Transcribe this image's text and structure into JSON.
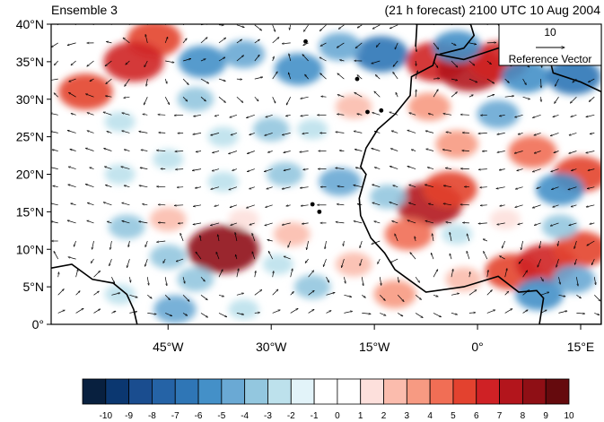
{
  "chart_data": {
    "type": "heatmap",
    "title_left": "Ensemble 3",
    "title_right": "(21 h forecast) 2100 UTC 10 Aug 2004",
    "map": {
      "lon_range": [
        -62,
        18
      ],
      "lat_range": [
        0,
        40
      ],
      "x_tick_labels": [
        {
          "lon": -45,
          "label": "45°W"
        },
        {
          "lon": -30,
          "label": "30°W"
        },
        {
          "lon": -15,
          "label": "15°W"
        },
        {
          "lon": 0,
          "label": "0°"
        },
        {
          "lon": 15,
          "label": "15°E"
        }
      ],
      "y_tick_labels": [
        {
          "lat": 0,
          "label": "0°"
        },
        {
          "lat": 5,
          "label": "5°N"
        },
        {
          "lat": 10,
          "label": "10°N"
        },
        {
          "lat": 15,
          "label": "15°N"
        },
        {
          "lat": 20,
          "label": "20°N"
        },
        {
          "lat": 25,
          "label": "25°N"
        },
        {
          "lat": 30,
          "label": "30°N"
        },
        {
          "lat": 35,
          "label": "35°N"
        },
        {
          "lat": 40,
          "label": "40°N"
        }
      ]
    },
    "reference_vector": {
      "magnitude": "10",
      "label": "Reference Vector"
    },
    "colorbar": {
      "labels": [
        "-10",
        "-9",
        "-8",
        "-7",
        "-6",
        "-5",
        "-4",
        "-3",
        "-2",
        "-1",
        "0",
        "1",
        "2",
        "3",
        "4",
        "5",
        "6",
        "7",
        "8",
        "9",
        "10"
      ],
      "colors": [
        "#08203f",
        "#0b3770",
        "#1a4d8f",
        "#2563a6",
        "#2f76b6",
        "#4490c8",
        "#6aa9d4",
        "#93c7df",
        "#bde1ec",
        "#e2f3f9",
        "#ffffff",
        "#ffffff",
        "#fde0dc",
        "#fbbcad",
        "#f79a82",
        "#f16e55",
        "#e3422f",
        "#cf2125",
        "#b3151c",
        "#8f0f15",
        "#650a0d"
      ]
    },
    "anomalies": [
      {
        "lon": -47,
        "lat": 38,
        "v": 6
      },
      {
        "lon": -50,
        "lat": 35,
        "v": 7
      },
      {
        "lon": -57,
        "lat": 31,
        "v": 6
      },
      {
        "lon": -40,
        "lat": 35,
        "v": -5
      },
      {
        "lon": -34,
        "lat": 36,
        "v": -4
      },
      {
        "lon": -26,
        "lat": 34,
        "v": -5
      },
      {
        "lon": -14,
        "lat": 36,
        "v": -6
      },
      {
        "lon": -20,
        "lat": 37,
        "v": -4
      },
      {
        "lon": -41,
        "lat": 30,
        "v": -3
      },
      {
        "lon": -6,
        "lat": 35,
        "v": 7
      },
      {
        "lon": -1,
        "lat": 34,
        "v": 8
      },
      {
        "lon": 3,
        "lat": 35,
        "v": 7
      },
      {
        "lon": -3,
        "lat": 37,
        "v": -5
      },
      {
        "lon": 7,
        "lat": 33,
        "v": -5
      },
      {
        "lon": 14,
        "lat": 33,
        "v": -6
      },
      {
        "lon": -7,
        "lat": 29,
        "v": 4
      },
      {
        "lon": -18,
        "lat": 29,
        "v": 3
      },
      {
        "lon": -52,
        "lat": 27,
        "v": -2
      },
      {
        "lon": -30,
        "lat": 26,
        "v": -3
      },
      {
        "lon": -24,
        "lat": 26,
        "v": -2
      },
      {
        "lon": -37,
        "lat": 25,
        "v": -2
      },
      {
        "lon": 3,
        "lat": 28,
        "v": -4
      },
      {
        "lon": -3,
        "lat": 24,
        "v": 4
      },
      {
        "lon": 8,
        "lat": 23,
        "v": 5
      },
      {
        "lon": 15,
        "lat": 20,
        "v": 6
      },
      {
        "lon": 12,
        "lat": 18,
        "v": -5
      },
      {
        "lon": -45,
        "lat": 22,
        "v": -2
      },
      {
        "lon": -52,
        "lat": 20,
        "v": -2
      },
      {
        "lon": -28,
        "lat": 20,
        "v": -3
      },
      {
        "lon": -37,
        "lat": 19,
        "v": -2
      },
      {
        "lon": -20,
        "lat": 19,
        "v": -4
      },
      {
        "lon": -7,
        "lat": 16,
        "v": 8
      },
      {
        "lon": -4,
        "lat": 18,
        "v": 6
      },
      {
        "lon": -10,
        "lat": 12,
        "v": 5
      },
      {
        "lon": -13,
        "lat": 17,
        "v": -3
      },
      {
        "lon": -3,
        "lat": 12,
        "v": -2
      },
      {
        "lon": -51,
        "lat": 13,
        "v": -3
      },
      {
        "lon": -45,
        "lat": 14,
        "v": 3
      },
      {
        "lon": -34,
        "lat": 14,
        "v": 2
      },
      {
        "lon": -27,
        "lat": 12,
        "v": 3
      },
      {
        "lon": -37,
        "lat": 10,
        "v": 9
      },
      {
        "lon": -45,
        "lat": 9,
        "v": -3
      },
      {
        "lon": -41,
        "lat": 6,
        "v": -3
      },
      {
        "lon": -29,
        "lat": 8,
        "v": -2
      },
      {
        "lon": -24,
        "lat": 5,
        "v": -3
      },
      {
        "lon": -18,
        "lat": 8,
        "v": 3
      },
      {
        "lon": -12,
        "lat": 4,
        "v": 4
      },
      {
        "lon": -52,
        "lat": 4,
        "v": -2
      },
      {
        "lon": -44,
        "lat": 2,
        "v": -4
      },
      {
        "lon": -34,
        "lat": 2,
        "v": -2
      },
      {
        "lon": 5,
        "lat": 7,
        "v": 6
      },
      {
        "lon": 10,
        "lat": 8,
        "v": 7
      },
      {
        "lon": 15,
        "lat": 10,
        "v": 6
      },
      {
        "lon": 9,
        "lat": 4,
        "v": -5
      },
      {
        "lon": 14,
        "lat": 6,
        "v": -4
      },
      {
        "lon": -2,
        "lat": 6,
        "v": 3
      },
      {
        "lon": 4,
        "lat": 14,
        "v": 2
      },
      {
        "lon": 12,
        "lat": 13,
        "v": -3
      }
    ]
  }
}
